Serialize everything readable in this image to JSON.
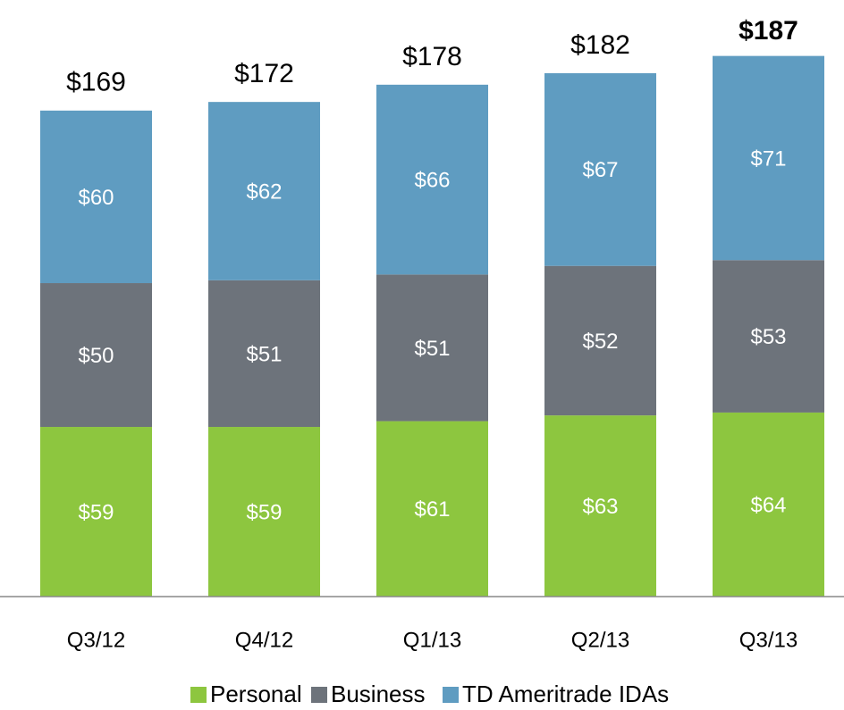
{
  "chart_data": {
    "type": "stacked_bar",
    "categories": [
      "Q3/12",
      "Q4/12",
      "Q1/13",
      "Q2/13",
      "Q3/13"
    ],
    "series": [
      {
        "name": "Personal",
        "color": "#8dc63f",
        "values": [
          59,
          59,
          61,
          63,
          64
        ],
        "value_labels": [
          "$59",
          "$59",
          "$61",
          "$63",
          "$64"
        ]
      },
      {
        "name": "Business",
        "color": "#6d737b",
        "values": [
          50,
          51,
          51,
          52,
          53
        ],
        "value_labels": [
          "$50",
          "$51",
          "$51",
          "$52",
          "$53"
        ]
      },
      {
        "name": "TD Ameritrade IDAs",
        "color": "#5f9cc1",
        "values": [
          60,
          62,
          66,
          67,
          71
        ],
        "value_labels": [
          "$60",
          "$62",
          "$66",
          "$67",
          "$71"
        ]
      }
    ],
    "totals": [
      169,
      172,
      178,
      182,
      187
    ],
    "total_labels": [
      "$169",
      "$172",
      "$178",
      "$182",
      "$187"
    ]
  }
}
